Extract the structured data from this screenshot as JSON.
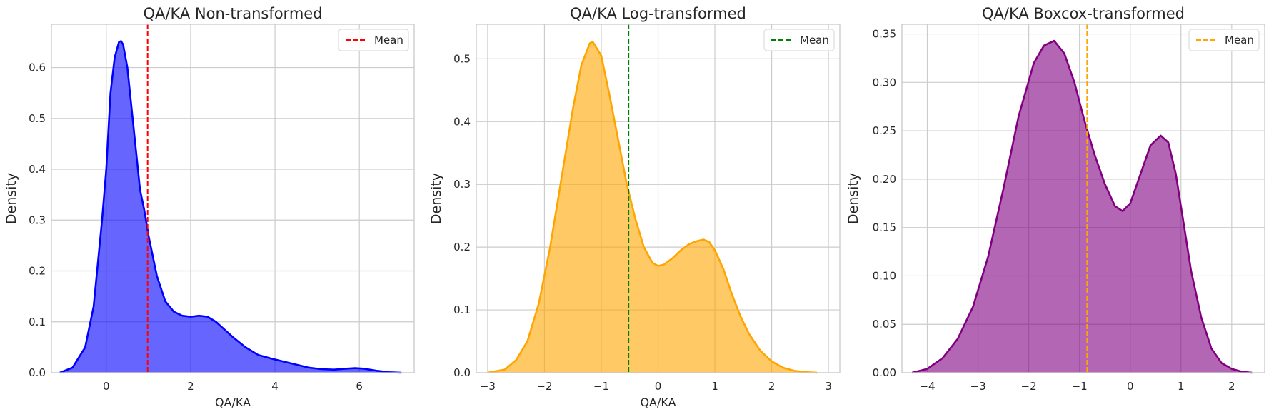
{
  "chart_data": [
    {
      "type": "area",
      "title": "QA/KA Non-transformed",
      "xlabel": "QA/KA",
      "ylabel": "Density",
      "xlim": [
        -1.3,
        7.3
      ],
      "ylim": [
        0,
        0.685
      ],
      "xticks": [
        0,
        2,
        4,
        6
      ],
      "yticks": [
        0.0,
        0.1,
        0.2,
        0.3,
        0.4,
        0.5,
        0.6
      ],
      "ytick_decimals": 1,
      "grid": true,
      "legend": {
        "position": "top-right",
        "entries": [
          {
            "label": "Mean",
            "color": "#ff0000"
          }
        ]
      },
      "mean": 0.98,
      "line_color": "#0000ff",
      "fill_color": "#0000ff",
      "fill_opacity": 0.6,
      "series": [
        {
          "x": [
            -1.1,
            -0.8,
            -0.5,
            -0.3,
            -0.1,
            0.0,
            0.1,
            0.2,
            0.3,
            0.35,
            0.4,
            0.5,
            0.6,
            0.7,
            0.8,
            0.9,
            1.0,
            1.1,
            1.2,
            1.4,
            1.6,
            1.8,
            2.0,
            2.2,
            2.4,
            2.6,
            2.8,
            3.0,
            3.3,
            3.6,
            3.9,
            4.2,
            4.5,
            4.8,
            5.1,
            5.4,
            5.7,
            5.9,
            6.1,
            6.4,
            6.7,
            7.0
          ],
          "y": [
            0.0,
            0.01,
            0.05,
            0.13,
            0.3,
            0.4,
            0.55,
            0.62,
            0.65,
            0.652,
            0.645,
            0.6,
            0.52,
            0.44,
            0.36,
            0.32,
            0.27,
            0.23,
            0.19,
            0.14,
            0.12,
            0.112,
            0.11,
            0.112,
            0.11,
            0.1,
            0.085,
            0.07,
            0.05,
            0.035,
            0.028,
            0.022,
            0.016,
            0.01,
            0.007,
            0.006,
            0.008,
            0.009,
            0.008,
            0.004,
            0.001,
            0.0
          ]
        }
      ]
    },
    {
      "type": "area",
      "title": "QA/KA Log-transformed",
      "xlabel": "QA/KA",
      "ylabel": "Density",
      "xlim": [
        -3.2,
        3.2
      ],
      "ylim": [
        0,
        0.555
      ],
      "xticks": [
        -3,
        -2,
        -1,
        0,
        1,
        2,
        3
      ],
      "yticks": [
        0.0,
        0.1,
        0.2,
        0.3,
        0.4,
        0.5
      ],
      "ytick_decimals": 1,
      "grid": true,
      "legend": {
        "position": "top-right",
        "entries": [
          {
            "label": "Mean",
            "color": "#008000"
          }
        ]
      },
      "mean": -0.52,
      "line_color": "#ffa500",
      "fill_color": "#ffa500",
      "fill_opacity": 0.6,
      "series": [
        {
          "x": [
            -3.0,
            -2.7,
            -2.5,
            -2.3,
            -2.1,
            -1.9,
            -1.7,
            -1.5,
            -1.35,
            -1.2,
            -1.15,
            -1.0,
            -0.85,
            -0.7,
            -0.55,
            -0.4,
            -0.25,
            -0.1,
            0.0,
            0.1,
            0.25,
            0.4,
            0.55,
            0.7,
            0.8,
            0.9,
            1.0,
            1.15,
            1.3,
            1.45,
            1.6,
            1.8,
            2.0,
            2.2,
            2.4,
            2.6,
            2.8
          ],
          "y": [
            0.0,
            0.005,
            0.02,
            0.05,
            0.11,
            0.2,
            0.31,
            0.42,
            0.49,
            0.525,
            0.527,
            0.505,
            0.44,
            0.37,
            0.3,
            0.245,
            0.2,
            0.175,
            0.17,
            0.172,
            0.182,
            0.195,
            0.205,
            0.21,
            0.212,
            0.208,
            0.195,
            0.165,
            0.125,
            0.09,
            0.062,
            0.035,
            0.018,
            0.008,
            0.003,
            0.001,
            0.0
          ]
        }
      ]
    },
    {
      "type": "area",
      "title": "QA/KA Boxcox-transformed",
      "xlabel": "",
      "ylabel": "Density",
      "xlim": [
        -4.5,
        2.65
      ],
      "ylim": [
        0,
        0.36
      ],
      "xticks": [
        -4,
        -3,
        -2,
        -1,
        0,
        1,
        2
      ],
      "yticks": [
        0.0,
        0.05,
        0.1,
        0.15,
        0.2,
        0.25,
        0.3,
        0.35
      ],
      "ytick_decimals": 2,
      "grid": true,
      "legend": {
        "position": "top-right",
        "entries": [
          {
            "label": "Mean",
            "color": "#ffa500"
          }
        ]
      },
      "mean": -0.85,
      "line_color": "#800080",
      "fill_color": "#800080",
      "fill_opacity": 0.6,
      "series": [
        {
          "x": [
            -4.3,
            -4.0,
            -3.7,
            -3.4,
            -3.1,
            -2.8,
            -2.5,
            -2.2,
            -1.9,
            -1.7,
            -1.5,
            -1.3,
            -1.1,
            -0.9,
            -0.7,
            -0.5,
            -0.3,
            -0.15,
            0.0,
            0.2,
            0.4,
            0.6,
            0.75,
            0.9,
            1.05,
            1.2,
            1.4,
            1.6,
            1.8,
            2.0,
            2.2,
            2.4
          ],
          "y": [
            0.0,
            0.004,
            0.015,
            0.035,
            0.068,
            0.12,
            0.19,
            0.265,
            0.32,
            0.338,
            0.343,
            0.33,
            0.3,
            0.26,
            0.225,
            0.195,
            0.172,
            0.167,
            0.175,
            0.205,
            0.235,
            0.245,
            0.238,
            0.205,
            0.155,
            0.105,
            0.057,
            0.025,
            0.01,
            0.004,
            0.001,
            0.0
          ]
        }
      ]
    }
  ]
}
